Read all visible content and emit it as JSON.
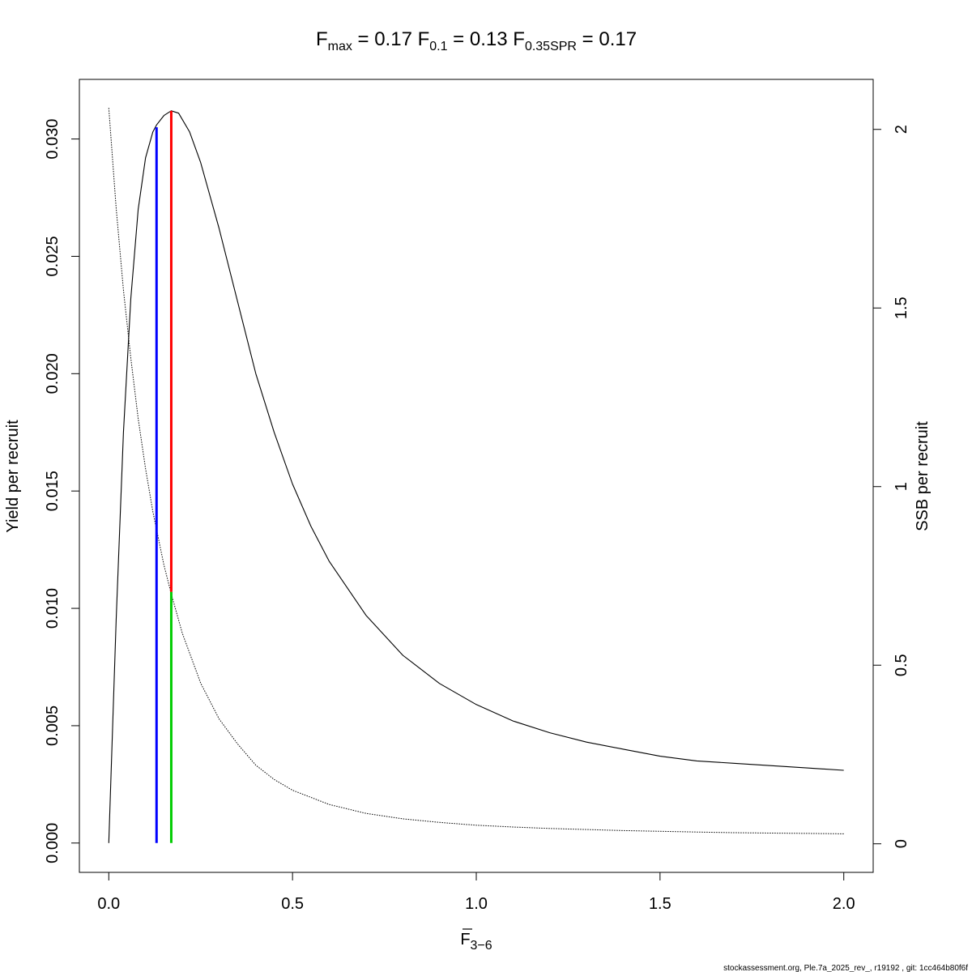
{
  "chart_data": {
    "type": "line",
    "title": {
      "fmax": {
        "symbol": "F",
        "sub": "max",
        "value": "0.17"
      },
      "f01": {
        "symbol": "F",
        "sub": "0.1",
        "value": "0.13"
      },
      "fspr": {
        "symbol": "F",
        "sub": "0.35SPR",
        "value": "0.17"
      }
    },
    "xlabel": {
      "symbol": "F",
      "sub": "3−6"
    },
    "ylabel": "Yield per recruit",
    "y2label": "SSB per recruit",
    "xlim": [
      -0.08,
      2.08
    ],
    "ylim": [
      -0.00125,
      0.03254
    ],
    "y2lim": [
      -0.08,
      2.14
    ],
    "x_ticks": [
      0,
      0.5,
      1,
      1.5,
      2
    ],
    "x_tick_labels": [
      "0.0",
      "0.5",
      "1.0",
      "1.5",
      "2.0"
    ],
    "y_ticks": [
      0,
      0.005,
      0.01,
      0.015,
      0.02,
      0.025,
      0.03
    ],
    "y_tick_labels": [
      "0.000",
      "0.005",
      "0.010",
      "0.015",
      "0.020",
      "0.025",
      "0.030"
    ],
    "y2_ticks": [
      0,
      0.5,
      1,
      1.5,
      2
    ],
    "y2_tick_labels": [
      "0",
      "0.5",
      "1",
      "1.5",
      "2"
    ],
    "grid": false,
    "series": [
      {
        "axis": "left",
        "style": "solid",
        "color": "#000000",
        "x": [
          0,
          0.02,
          0.04,
          0.06,
          0.08,
          0.1,
          0.12,
          0.13,
          0.15,
          0.17,
          0.19,
          0.22,
          0.25,
          0.3,
          0.35,
          0.4,
          0.45,
          0.5,
          0.55,
          0.6,
          0.7,
          0.8,
          0.9,
          1.0,
          1.1,
          1.2,
          1.3,
          1.4,
          1.5,
          1.6,
          1.7,
          1.8,
          1.9,
          2.0
        ],
        "values": [
          0,
          0.0095,
          0.0175,
          0.0232,
          0.027,
          0.0292,
          0.0303,
          0.0306,
          0.031,
          0.0312,
          0.0311,
          0.0303,
          0.029,
          0.0262,
          0.0231,
          0.02,
          0.0175,
          0.0153,
          0.0135,
          0.012,
          0.0097,
          0.008,
          0.0068,
          0.0059,
          0.0052,
          0.0047,
          0.0043,
          0.004,
          0.0037,
          0.0035,
          0.0034,
          0.0033,
          0.0032,
          0.0031
        ]
      },
      {
        "axis": "right",
        "style": "dotted",
        "color": "#000000",
        "x": [
          0,
          0.02,
          0.04,
          0.06,
          0.08,
          0.1,
          0.12,
          0.15,
          0.17,
          0.2,
          0.25,
          0.3,
          0.35,
          0.4,
          0.45,
          0.5,
          0.6,
          0.7,
          0.8,
          0.9,
          1.0,
          1.1,
          1.2,
          1.3,
          1.4,
          1.5,
          1.6,
          1.7,
          1.8,
          1.9,
          2.0
        ],
        "values": [
          2.06,
          1.78,
          1.55,
          1.36,
          1.19,
          1.05,
          0.93,
          0.78,
          0.7,
          0.59,
          0.45,
          0.35,
          0.28,
          0.22,
          0.18,
          0.15,
          0.11,
          0.085,
          0.07,
          0.06,
          0.052,
          0.047,
          0.043,
          0.04,
          0.037,
          0.035,
          0.033,
          0.031,
          0.03,
          0.029,
          0.028
        ]
      }
    ],
    "reference_lines": [
      {
        "name": "F0.1",
        "color": "#0000ff",
        "x": 0.13,
        "from": 0,
        "to": 0.0305,
        "scale": "left"
      },
      {
        "name": "Fmax",
        "color": "#ff0000",
        "x": 0.17,
        "from": 0.0107,
        "to": 0.0312,
        "scale": "left"
      },
      {
        "name": "F0.35SPR",
        "color": "#00cc00",
        "x": 0.17,
        "from": 0,
        "to": 0.0107,
        "scale": "left"
      }
    ]
  },
  "footer": "stockassessment.org, Ple.7a_2025_rev_, r19192 , git: 1cc464b80f6f"
}
